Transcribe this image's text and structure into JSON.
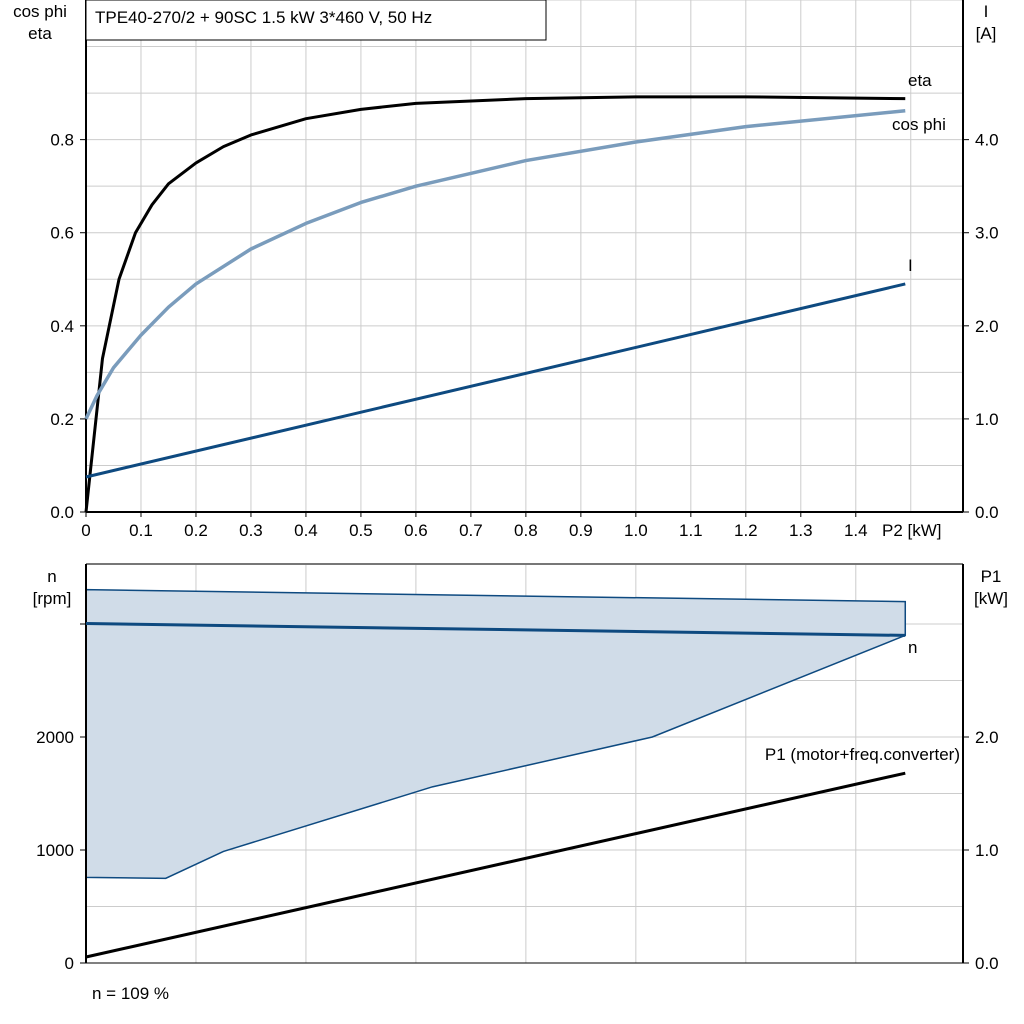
{
  "title": "TPE40-270/2 + 90SC   1.5 kW   3*460 V, 50 Hz",
  "footer": "n = 109 %",
  "colors": {
    "eta": "#000000",
    "cos_phi": "#7a9cbc",
    "I": "#0e4a80",
    "n": "#0e4a80",
    "n_fill": "#d0dce8",
    "P1": "#000000",
    "grid": "#cccccc"
  },
  "chart_data": [
    {
      "type": "line",
      "title": "TPE40-270/2 + 90SC   1.5 kW   3*460 V, 50 Hz",
      "xlabel": "P2 [kW]",
      "ylabel_left": [
        "cos phi",
        "eta"
      ],
      "ylabel_right": [
        "I",
        "[A]"
      ],
      "xlim": [
        0,
        1.595
      ],
      "ylim_left": [
        0,
        1.1
      ],
      "ylim_right": [
        0,
        5.5
      ],
      "grid": true,
      "xticks": [
        "0",
        "0.1",
        "0.2",
        "0.3",
        "0.4",
        "0.5",
        "0.6",
        "0.7",
        "0.8",
        "0.9",
        "1.0",
        "1.1",
        "1.2",
        "1.3",
        "1.4"
      ],
      "yticks_left": [
        "0.0",
        "0.2",
        "0.4",
        "0.6",
        "0.8"
      ],
      "yticks_right": [
        "0.0",
        "1.0",
        "2.0",
        "3.0",
        "4.0"
      ],
      "series": [
        {
          "name": "eta",
          "axis": "left",
          "x": [
            0,
            0.03,
            0.06,
            0.09,
            0.12,
            0.15,
            0.2,
            0.25,
            0.3,
            0.4,
            0.5,
            0.6,
            0.8,
            1.0,
            1.2,
            1.49
          ],
          "y": [
            0,
            0.33,
            0.5,
            0.6,
            0.66,
            0.705,
            0.75,
            0.785,
            0.81,
            0.845,
            0.865,
            0.878,
            0.888,
            0.892,
            0.892,
            0.888
          ]
        },
        {
          "name": "cos phi",
          "axis": "left",
          "x": [
            0,
            0.02,
            0.05,
            0.1,
            0.15,
            0.2,
            0.3,
            0.4,
            0.5,
            0.6,
            0.8,
            1.0,
            1.2,
            1.49
          ],
          "y": [
            0.2,
            0.25,
            0.31,
            0.38,
            0.44,
            0.49,
            0.565,
            0.62,
            0.665,
            0.7,
            0.755,
            0.795,
            0.828,
            0.862
          ]
        },
        {
          "name": "I",
          "axis": "right",
          "x": [
            0,
            1.49
          ],
          "y": [
            0.376,
            2.45
          ]
        }
      ]
    },
    {
      "type": "line",
      "xlim": [
        0,
        1.595
      ],
      "ylabel_left": [
        "n",
        "[rpm]"
      ],
      "ylabel_right": [
        "P1",
        "[kW]"
      ],
      "ylim_left": [
        0,
        3550
      ],
      "ylim_right": [
        0,
        3.55
      ],
      "grid": true,
      "yticks_left": [
        "0",
        "1000",
        "2000"
      ],
      "yticks_right": [
        "0.0",
        "1.0",
        "2.0"
      ],
      "series": [
        {
          "name": "n",
          "axis": "left",
          "x": [
            0,
            1.49
          ],
          "y": [
            3004,
            2899
          ]
        },
        {
          "name": "n range",
          "axis": "left",
          "type": "area",
          "upper_x": [
            0,
            1.49,
            1.49
          ],
          "upper_y": [
            3304,
            3198,
            2899
          ],
          "lower_x": [
            0,
            0.145,
            0.25,
            0.63,
            1.03,
            1.49
          ],
          "lower_y": [
            758,
            749,
            987,
            1559,
            2000,
            2899
          ]
        },
        {
          "name": "P1 (motor+freq.converter)",
          "axis": "right",
          "x": [
            0,
            1.49
          ],
          "y": [
            0.053,
            1.68
          ]
        }
      ]
    }
  ]
}
